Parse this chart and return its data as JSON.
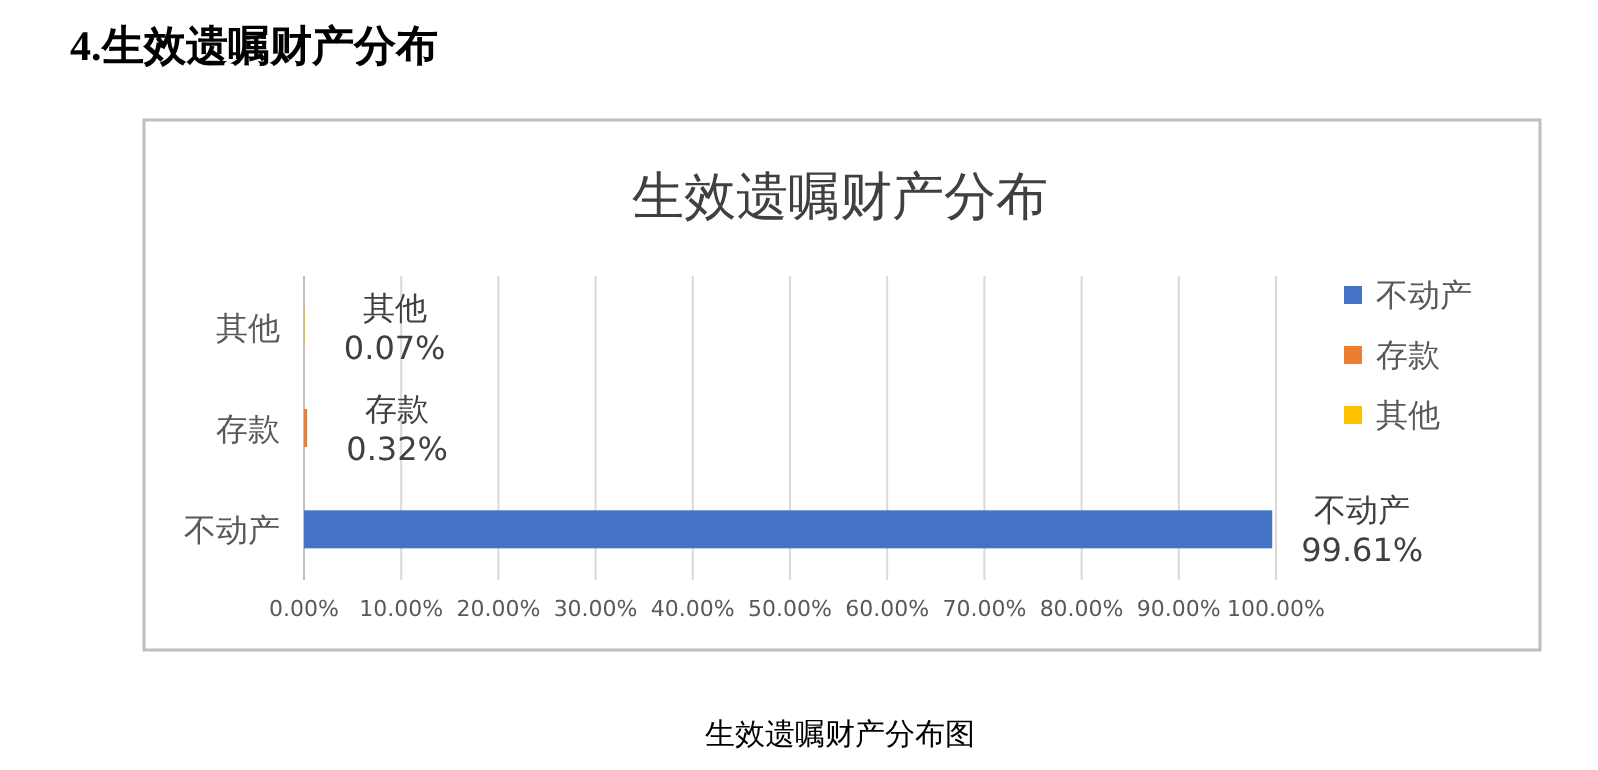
{
  "chart_data": {
    "type": "bar",
    "orientation": "horizontal",
    "title": "生效遗嘱财产分布",
    "annotations": [
      "4.生效遗嘱财产分布",
      "生效遗嘱财产分布图"
    ],
    "categories": [
      "其他",
      "存款",
      "不动产"
    ],
    "series": [
      {
        "name": "不动产",
        "color": "#4472c4",
        "values": [
          null,
          null,
          99.61
        ],
        "value_labels": [
          null,
          null,
          "不动产\n99.61%"
        ]
      },
      {
        "name": "存款",
        "color": "#ed7d31",
        "values": [
          null,
          0.32,
          null
        ],
        "value_labels": [
          null,
          "存款\n0.32%",
          null
        ]
      },
      {
        "name": "其他",
        "color": "#ffc000",
        "values": [
          0.07,
          null,
          null
        ],
        "value_labels": [
          "其他\n0.07%",
          null,
          null
        ]
      }
    ],
    "xlim": [
      0,
      100
    ],
    "xticks": [
      {
        "value": 0,
        "label": "0.00%"
      },
      {
        "value": 10,
        "label": "10.00%"
      },
      {
        "value": 20,
        "label": "20.00%"
      },
      {
        "value": 30,
        "label": "30.00%"
      },
      {
        "value": 40,
        "label": "40.00%"
      },
      {
        "value": 50,
        "label": "50.00%"
      },
      {
        "value": 60,
        "label": "60.00%"
      },
      {
        "value": 70,
        "label": "70.00%"
      },
      {
        "value": 80,
        "label": "80.00%"
      },
      {
        "value": 90,
        "label": "90.00%"
      },
      {
        "value": 100,
        "label": "100.00%"
      }
    ],
    "grid": "x",
    "legend": "right"
  }
}
